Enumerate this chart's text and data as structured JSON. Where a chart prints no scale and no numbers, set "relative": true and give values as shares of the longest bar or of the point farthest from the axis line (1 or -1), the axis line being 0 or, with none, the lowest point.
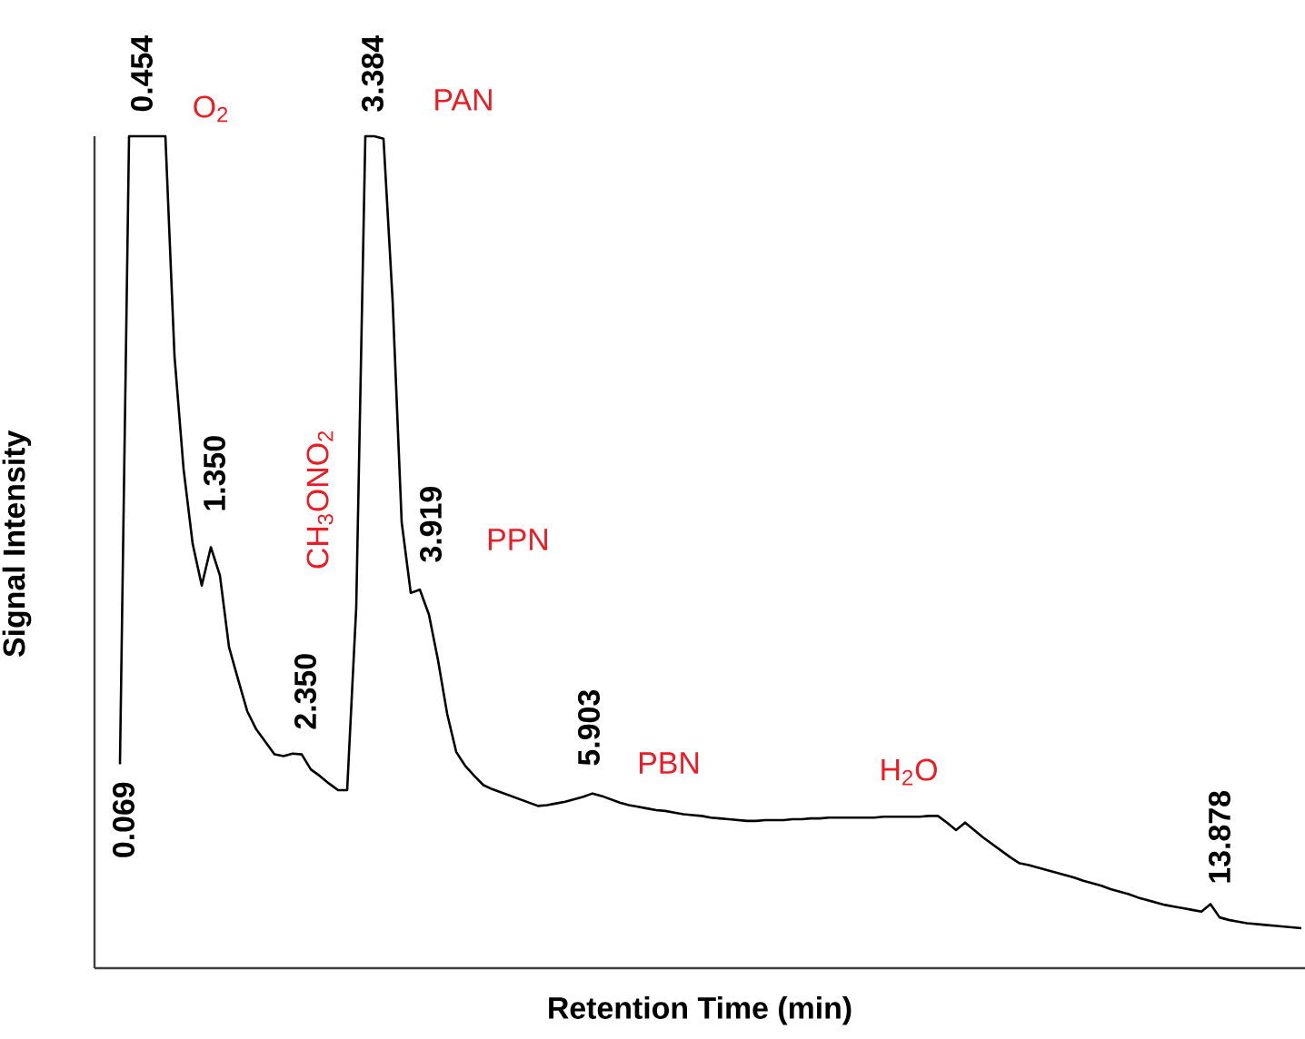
{
  "chart_data": {
    "type": "line",
    "relative": true,
    "tick_labels": false,
    "xlabel": "Retention Time (min)",
    "ylabel": "Signal Intensity",
    "categories": [
      null,
      null,
      null,
      null,
      null,
      null,
      null,
      null,
      null,
      null,
      null,
      null,
      null,
      null,
      null,
      null,
      null,
      null,
      null,
      null,
      null,
      null,
      null,
      null,
      null,
      null,
      null,
      null,
      null,
      null,
      null,
      null,
      null,
      null,
      null,
      null,
      null,
      null,
      null,
      null,
      null,
      null,
      null,
      null,
      null,
      null,
      null,
      null,
      null,
      null,
      null,
      null,
      null,
      null,
      null,
      null,
      null,
      null,
      null,
      null,
      null,
      null,
      null,
      null,
      null,
      null,
      null,
      null,
      null,
      null,
      null,
      null,
      null,
      null,
      null,
      null,
      null,
      null,
      null,
      null,
      null,
      null,
      null,
      null,
      null,
      null,
      null,
      null,
      null,
      null,
      null,
      null,
      null,
      null,
      null,
      null,
      null,
      null,
      null,
      null,
      null,
      null,
      null,
      null,
      null,
      null,
      null,
      null,
      null,
      null,
      null,
      null,
      null,
      null,
      null,
      null,
      null,
      null,
      null,
      null,
      null,
      null,
      null,
      null,
      null,
      null,
      null,
      null,
      null,
      null,
      null
    ],
    "values": [
      0.245,
      1.0,
      1.0,
      1.0,
      1.0,
      1.0,
      0.736,
      0.6,
      0.51,
      0.46,
      0.506,
      0.472,
      0.386,
      0.347,
      0.309,
      0.287,
      0.272,
      0.257,
      0.255,
      0.258,
      0.257,
      0.239,
      0.231,
      0.222,
      0.214,
      0.214,
      0.434,
      1.0,
      1.0,
      0.997,
      0.803,
      0.536,
      0.451,
      0.455,
      0.425,
      0.37,
      0.306,
      0.26,
      0.243,
      0.231,
      0.22,
      0.215,
      0.211,
      0.207,
      0.203,
      0.199,
      0.195,
      0.196,
      0.198,
      0.2,
      0.203,
      0.206,
      0.21,
      0.207,
      0.203,
      0.199,
      0.196,
      0.194,
      0.192,
      0.19,
      0.189,
      0.187,
      0.185,
      0.184,
      0.183,
      0.181,
      0.18,
      0.179,
      0.178,
      0.177,
      0.177,
      0.178,
      0.178,
      0.178,
      0.179,
      0.179,
      0.18,
      0.18,
      0.181,
      0.181,
      0.181,
      0.181,
      0.181,
      0.181,
      0.182,
      0.182,
      0.182,
      0.182,
      0.182,
      0.183,
      0.183,
      0.175,
      0.166,
      0.175,
      0.166,
      0.157,
      0.149,
      0.141,
      0.133,
      0.126,
      0.124,
      0.121,
      0.118,
      0.115,
      0.112,
      0.109,
      0.105,
      0.102,
      0.099,
      0.095,
      0.092,
      0.089,
      0.085,
      0.082,
      0.079,
      0.076,
      0.074,
      0.072,
      0.07,
      0.068,
      0.077,
      0.061,
      0.058,
      0.056,
      0.054,
      0.053,
      0.052,
      0.051,
      0.05,
      0.049,
      0.048
    ],
    "color": "#000000",
    "annotations": [
      "0.069",
      "0.454",
      "1.350",
      "2.350",
      "3.384",
      "3.919",
      "5.903",
      "13.878",
      "O$_{2}$",
      "CH$_{3}$ONO$_{2}$",
      "PAN",
      "PPN",
      "PBN",
      "H$_{2}$O"
    ]
  }
}
